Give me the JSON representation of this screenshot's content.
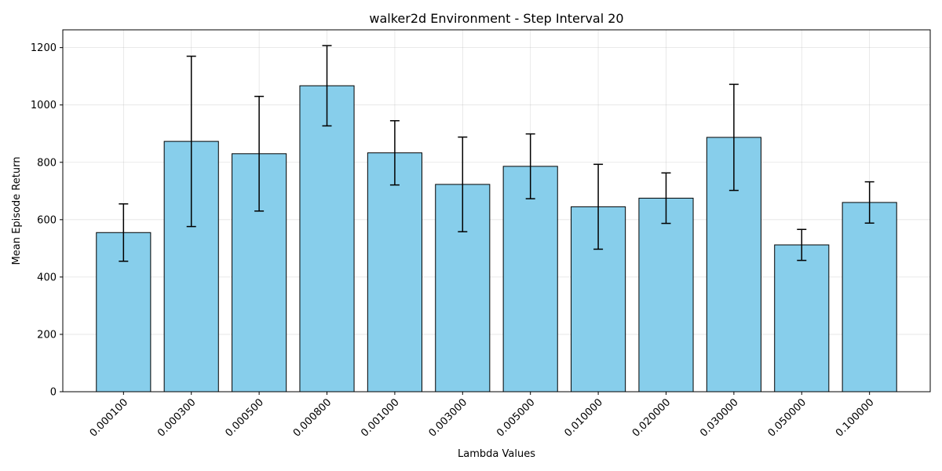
{
  "chart_data": {
    "type": "bar",
    "title": "walker2d Environment - Step Interval 20",
    "xlabel": "Lambda Values",
    "ylabel": "Mean Episode Return",
    "categories": [
      "0.000100",
      "0.000300",
      "0.000500",
      "0.000800",
      "0.001000",
      "0.003000",
      "0.005000",
      "0.010000",
      "0.020000",
      "0.030000",
      "0.050000",
      "0.100000"
    ],
    "values": [
      555,
      873,
      830,
      1067,
      833,
      723,
      786,
      645,
      675,
      887,
      512,
      660
    ],
    "errors": [
      100,
      297,
      200,
      140,
      112,
      165,
      113,
      148,
      88,
      185,
      54,
      72
    ],
    "ylim": [
      0,
      1262
    ],
    "yticks": [
      0,
      200,
      400,
      600,
      800,
      1000,
      1200
    ],
    "grid": true,
    "bar_color": "#87CEEB",
    "edge_color": "#000000"
  }
}
